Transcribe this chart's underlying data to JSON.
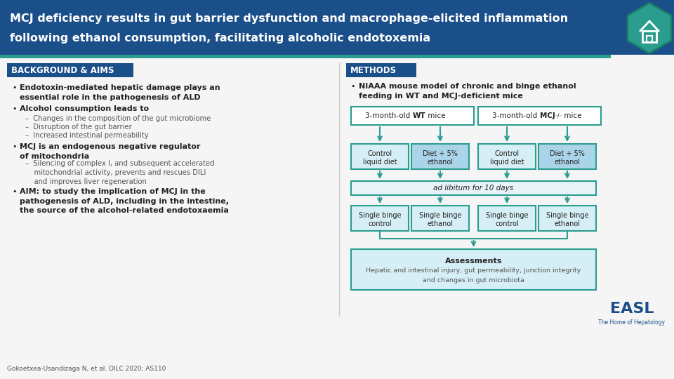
{
  "title_line1": "MCJ deficiency results in gut barrier dysfunction and macrophage-elicited inflammation",
  "title_line2": "following ethanol consumption, facilitating alcoholic endotoxemia",
  "title_bg_color": "#1b4f8a",
  "title_text_color": "#ffffff",
  "header_accent_color": "#2a9d8f",
  "bg_color": "#f5f5f5",
  "section_header_bg": "#1b4f8a",
  "section_header_text": "#ffffff",
  "box_border_color": "#2a9d8f",
  "box_white_fill": "#ffffff",
  "box_light_fill": "#d6eef5",
  "box_medium_fill": "#aad5e8",
  "arrow_color": "#2a9d8f",
  "text_dark": "#222222",
  "text_gray": "#555555",
  "separator_color": "#cccccc",
  "footer_text": "Gokoetxea-Usandizaga N, et al. DILC 2020; AS110",
  "easl_color": "#1b4f8a"
}
